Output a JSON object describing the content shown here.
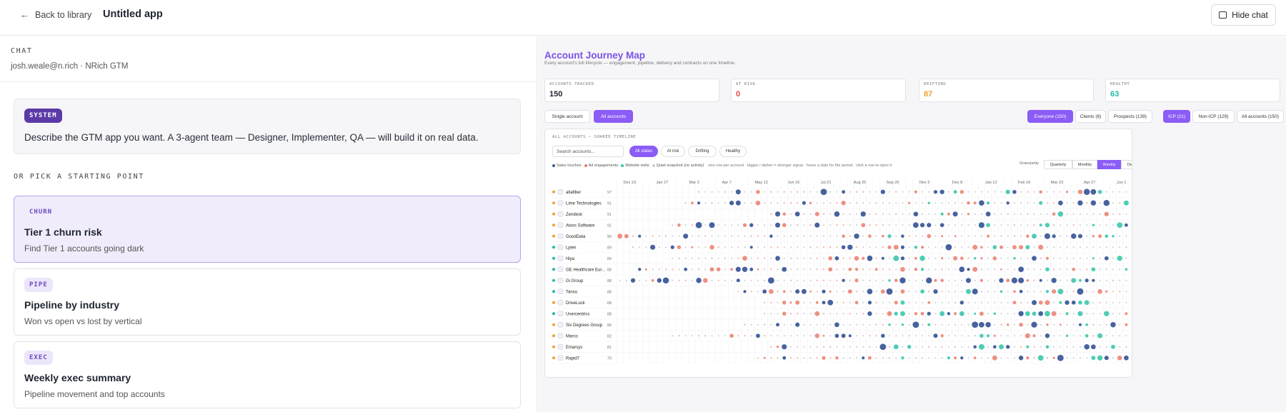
{
  "topbar": {
    "back_label": "Back to library",
    "app_title": "Untitled app",
    "hide_chat_label": "Hide chat"
  },
  "chat": {
    "section_label": "CHAT",
    "user": "josh.weale@n.rich · NRich GTM",
    "system_badge": "SYSTEM",
    "system_text": "Describe the GTM app you want. A 3-agent team — Designer, Implementer, QA — will build it on real data.",
    "pick_label": "OR PICK A STARTING POINT",
    "cards": [
      {
        "tag": "CHURN",
        "title": "Tier 1 churn risk",
        "desc": "Find Tier 1 accounts going dark"
      },
      {
        "tag": "PIPE",
        "title": "Pipeline by industry",
        "desc": "Won vs open vs lost by vertical"
      },
      {
        "tag": "EXEC",
        "title": "Weekly exec summary",
        "desc": "Pipeline movement and top accounts"
      }
    ]
  },
  "map": {
    "title": "Account Journey Map",
    "subtitle": "Every account's full lifecycle — engagement, pipeline, delivery and contracts on one timeline.",
    "stats": [
      {
        "label": "ACCOUNTS TRACKED",
        "value": "150",
        "color": "#1f2430"
      },
      {
        "label": "AT RISK",
        "value": "0",
        "color": "#e24a4a"
      },
      {
        "label": "DRIFTING",
        "value": "87",
        "color": "#f0a030"
      },
      {
        "label": "HEALTHY",
        "value": "63",
        "color": "#1fb8a8"
      }
    ],
    "view_toggle": [
      "Single account",
      "All accounts"
    ],
    "segment_toggle": [
      "Everyone (150)",
      "Clients (8)",
      "Prospects (139)"
    ],
    "icp_toggle": [
      "ICP (21)",
      "Non-ICP (129)",
      "All accounts (150)"
    ],
    "timeline_label": "ALL ACCOUNTS — SHARED TIMELINE",
    "search_placeholder": "Search accounts...",
    "state_filters": [
      "All states",
      "At risk",
      "Drifting",
      "Healthy"
    ],
    "legend": {
      "items": [
        {
          "label": "Sales touches",
          "color": "#3d5a99"
        },
        {
          "label": "Ad engagements",
          "color": "#ec7a6a"
        },
        {
          "label": "Website visits",
          "color": "#2fc3a8"
        },
        {
          "label": "Quiet snapshot (no activity)",
          "color": "#c8c8d0"
        }
      ],
      "note": "one row per account · bigger / darker = stronger signal · hover a date for the period · click a row to open it"
    },
    "granularity_label": "Granularity",
    "granularity": [
      "Quarterly",
      "Monthly",
      "Weekly",
      "Daily"
    ]
  },
  "chart_data": {
    "type": "scatter",
    "x_ticks": [
      "Dec 23",
      "Jan 27",
      "Mar 3",
      "Apr 7",
      "May 12",
      "Jun 16",
      "Jul 21",
      "Aug 25",
      "Sep 29",
      "Nov 3",
      "Dec 8",
      "Jan 12",
      "Feb 16",
      "Mar 23",
      "Apr 27",
      "Jun 1"
    ],
    "rows": [
      {
        "name": "altafiber",
        "score": "97",
        "status": "#f0a030"
      },
      {
        "name": "Lime Technologies",
        "score": "91",
        "status": "#f0a030"
      },
      {
        "name": "Zendesk",
        "score": "91",
        "status": "#f0a030"
      },
      {
        "name": "Atoss Software",
        "score": "91",
        "status": "#f0a030"
      },
      {
        "name": "GoodData",
        "score": "90",
        "status": "#f0a030"
      },
      {
        "name": "Lyten",
        "score": "89",
        "status": "#1fb8a8"
      },
      {
        "name": "Hiya",
        "score": "89",
        "status": "#1fb8a8"
      },
      {
        "name": "GE Healthcare Eur...",
        "score": "88",
        "status": "#1fb8a8"
      },
      {
        "name": "Gi Group",
        "score": "88",
        "status": "#1fb8a8"
      },
      {
        "name": "Tanso",
        "score": "88",
        "status": "#1fb8a8"
      },
      {
        "name": "DriveLock",
        "score": "88",
        "status": "#f0a030"
      },
      {
        "name": "Usercentrics",
        "score": "88",
        "status": "#1fb8a8"
      },
      {
        "name": "Six Degrees Group",
        "score": "86",
        "status": "#f0a030"
      },
      {
        "name": "Marco",
        "score": "82",
        "status": "#f0a030"
      },
      {
        "name": "Emarsys",
        "score": "81",
        "status": "#f0a030"
      },
      {
        "name": "Rapid7",
        "score": "79",
        "status": "#f0a030"
      }
    ],
    "weeks": 78
  }
}
